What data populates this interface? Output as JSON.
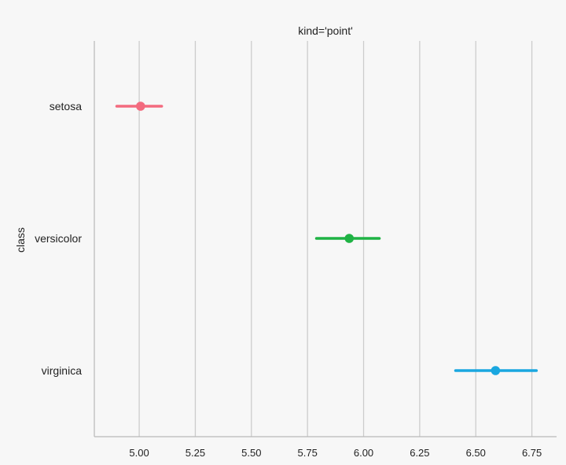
{
  "chart_data": {
    "type": "point",
    "title": "kind='point'",
    "xlabel": "",
    "ylabel": "class",
    "xlim": [
      4.8,
      6.86
    ],
    "xticks": [
      "5.00",
      "5.25",
      "5.50",
      "5.75",
      "6.00",
      "6.25",
      "6.50",
      "6.75"
    ],
    "grid": "vertical",
    "categories": [
      "setosa",
      "versicolor",
      "virginica"
    ],
    "points": [
      {
        "category": "setosa",
        "value": 5.006,
        "ci": [
          4.9,
          5.1
        ],
        "color": "#f36b7f"
      },
      {
        "category": "versicolor",
        "value": 5.936,
        "ci": [
          5.79,
          6.07
        ],
        "color": "#1fb344"
      },
      {
        "category": "virginica",
        "value": 6.588,
        "ci": [
          6.41,
          6.77
        ],
        "color": "#1aa7e0"
      }
    ]
  }
}
